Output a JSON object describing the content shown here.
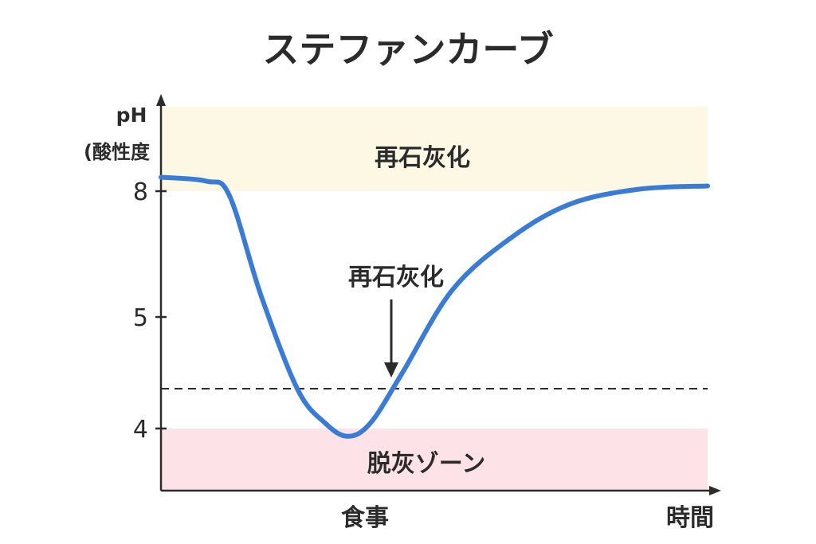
{
  "chart_data": {
    "type": "line",
    "title": "ステファンカーブ",
    "ylabel": "pH",
    "ylabel_sub": "(酸性度",
    "xlabel": "時間",
    "x_tick_label": "食事",
    "y_ticks": [
      {
        "value": 8,
        "label": "8"
      },
      {
        "value": 5,
        "label": "5"
      },
      {
        "value": 4,
        "label": "4"
      }
    ],
    "bands": [
      {
        "name": "再石灰化",
        "color": "#fcf8e3"
      },
      {
        "name": "脱灰ゾーン",
        "color": "#fde3e7"
      }
    ],
    "annotation": {
      "label": "再石灰化"
    },
    "threshold_line": {
      "style": "dashed"
    },
    "series": [
      {
        "color": "#3a7bd5",
        "points": [
          {
            "x": 0,
            "y": 8.35
          },
          {
            "x": 1,
            "y": 8.25
          },
          {
            "x": 1.5,
            "y": 7.9
          },
          {
            "x": 2.2,
            "y": 5.5
          },
          {
            "x": 3,
            "y": 4.35
          },
          {
            "x": 3.6,
            "y": 4.05
          },
          {
            "x": 4.1,
            "y": 3.93
          },
          {
            "x": 4.6,
            "y": 4.05
          },
          {
            "x": 5.3,
            "y": 4.5
          },
          {
            "x": 6.4,
            "y": 5.65
          },
          {
            "x": 7.7,
            "y": 6.9
          },
          {
            "x": 9,
            "y": 7.7
          },
          {
            "x": 10.5,
            "y": 8.05
          },
          {
            "x": 12,
            "y": 8.13
          }
        ]
      }
    ]
  }
}
